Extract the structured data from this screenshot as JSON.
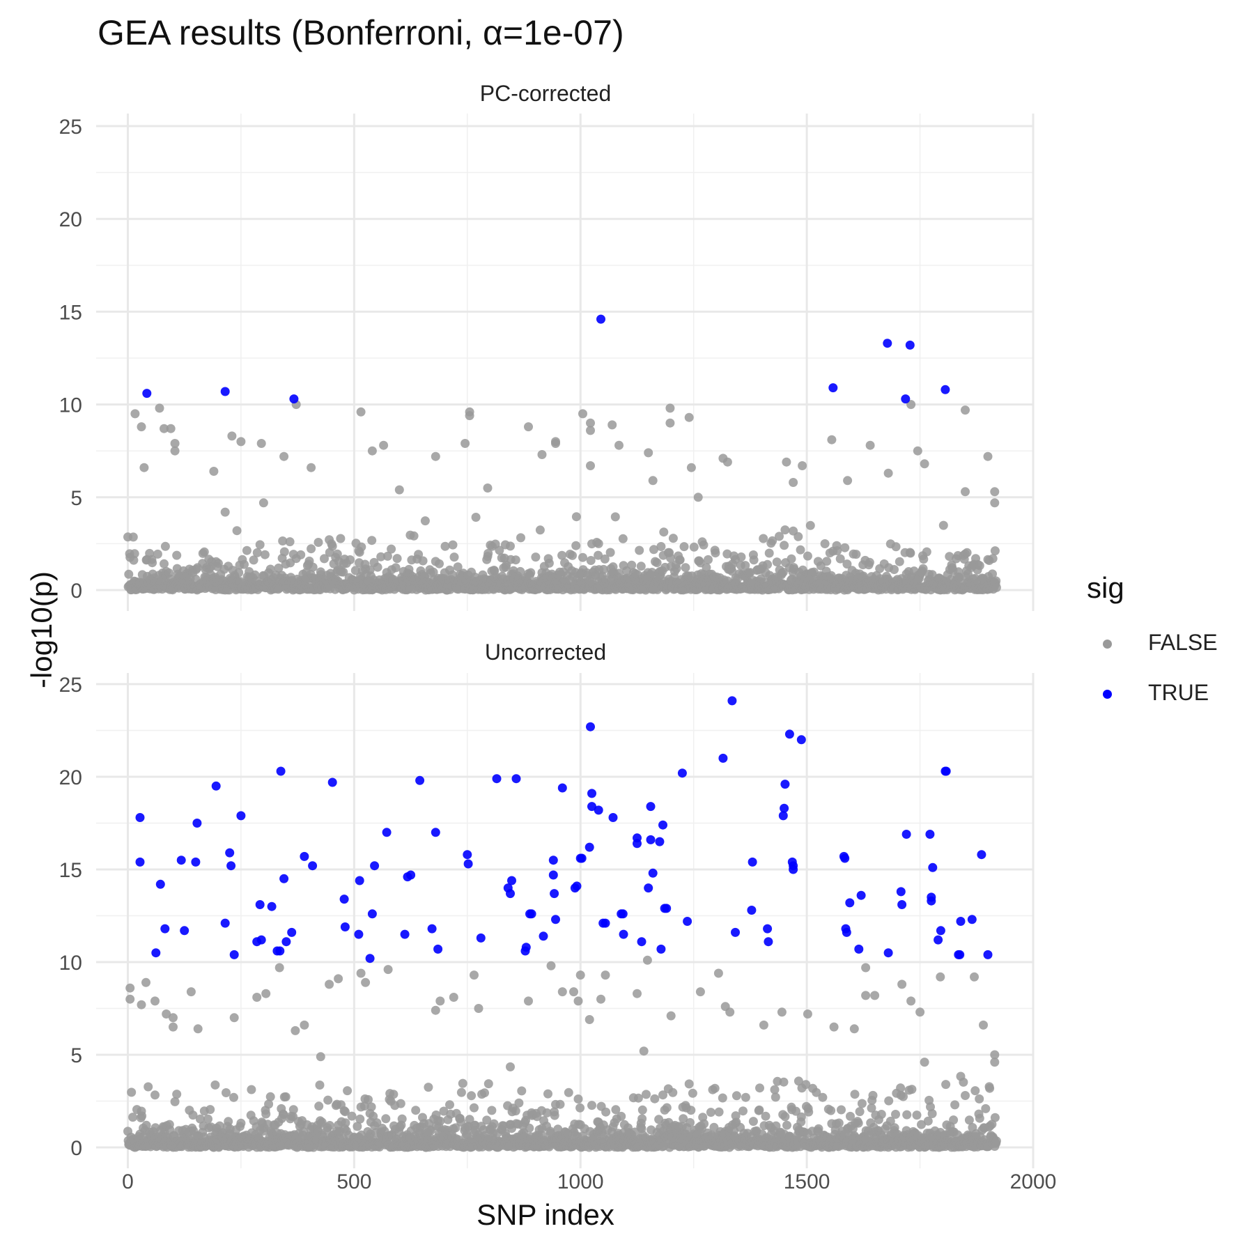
{
  "title": "GEA results (Bonferroni, α=1e-07)",
  "colors": {
    "false": "#999999",
    "true": "#0000ff"
  },
  "chart_data": {
    "type": "scatter",
    "title": "GEA results (Bonferroni, α=1e-07)",
    "xlabel": "SNP index",
    "ylabel": "-log10(p)",
    "xlim": [
      -70,
      2000
    ],
    "ylim": [
      -1.25,
      25.2
    ],
    "x_ticks": [
      0,
      500,
      1000,
      1500,
      2000
    ],
    "x_tick_labels": [
      "0",
      "500",
      "1000",
      "1500",
      "2000"
    ],
    "y_ticks": [
      0,
      5,
      10,
      15,
      20,
      25
    ],
    "y_tick_labels": [
      "0",
      "5",
      "10",
      "15",
      "20",
      "25"
    ],
    "n_snps": 1920,
    "grid": true,
    "legend": {
      "title": "sig",
      "placement": "right",
      "entries": [
        "FALSE",
        "TRUE"
      ]
    },
    "panels": [
      {
        "strip": "PC-corrected",
        "significant_points": [
          [
            42,
            10.6
          ],
          [
            215,
            10.7
          ],
          [
            367,
            10.3
          ],
          [
            1045,
            14.6
          ],
          [
            1558,
            10.9
          ],
          [
            1678,
            13.3
          ],
          [
            1718,
            10.3
          ],
          [
            1728,
            13.2
          ],
          [
            1806,
            10.8
          ]
        ],
        "nonsig_points": [
          [
            16,
            9.5
          ],
          [
            30,
            8.8
          ],
          [
            70,
            9.8
          ],
          [
            80,
            8.7
          ],
          [
            95,
            8.7
          ],
          [
            104,
            7.9
          ],
          [
            104,
            7.5
          ],
          [
            36,
            6.6
          ],
          [
            190,
            6.4
          ],
          [
            230,
            8.3
          ],
          [
            250,
            8.0
          ],
          [
            295,
            7.9
          ],
          [
            345,
            7.2
          ],
          [
            372,
            10.0
          ],
          [
            405,
            6.6
          ],
          [
            515,
            9.6
          ],
          [
            540,
            7.5
          ],
          [
            565,
            7.8
          ],
          [
            745,
            7.9
          ],
          [
            755,
            9.4
          ],
          [
            755,
            9.6
          ],
          [
            680,
            7.2
          ],
          [
            795,
            5.5
          ],
          [
            885,
            8.8
          ],
          [
            915,
            7.3
          ],
          [
            945,
            8.0
          ],
          [
            945,
            7.9
          ],
          [
            1005,
            9.5
          ],
          [
            1022,
            9.0
          ],
          [
            1022,
            8.6
          ],
          [
            1022,
            6.7
          ],
          [
            1070,
            8.9
          ],
          [
            1085,
            7.8
          ],
          [
            1150,
            7.4
          ],
          [
            1198,
            9.8
          ],
          [
            1198,
            9.0
          ],
          [
            1240,
            9.3
          ],
          [
            1245,
            6.6
          ],
          [
            1315,
            7.1
          ],
          [
            1325,
            6.9
          ],
          [
            1455,
            6.9
          ],
          [
            1490,
            6.7
          ],
          [
            1555,
            8.1
          ],
          [
            1640,
            7.8
          ],
          [
            1680,
            6.3
          ],
          [
            1730,
            10.0
          ],
          [
            1745,
            7.5
          ],
          [
            1760,
            6.8
          ],
          [
            1850,
            9.7
          ],
          [
            1900,
            7.2
          ],
          [
            1470,
            5.8
          ],
          [
            1590,
            5.9
          ],
          [
            1850,
            5.3
          ],
          [
            1915,
            5.3
          ],
          [
            1915,
            4.7
          ],
          [
            215,
            4.2
          ],
          [
            300,
            4.7
          ],
          [
            600,
            5.4
          ],
          [
            1160,
            5.9
          ],
          [
            1260,
            5.0
          ]
        ]
      },
      {
        "strip": "Uncorrected",
        "significant_points": [
          [
            27,
            17.8
          ],
          [
            27,
            15.4
          ],
          [
            62,
            10.5
          ],
          [
            72,
            14.2
          ],
          [
            82,
            11.8
          ],
          [
            118,
            15.5
          ],
          [
            125,
            11.7
          ],
          [
            150,
            15.4
          ],
          [
            153,
            17.5
          ],
          [
            195,
            19.5
          ],
          [
            215,
            12.1
          ],
          [
            225,
            15.9
          ],
          [
            228,
            15.2
          ],
          [
            235,
            10.4
          ],
          [
            250,
            17.9
          ],
          [
            285,
            11.1
          ],
          [
            292,
            13.1
          ],
          [
            295,
            11.2
          ],
          [
            318,
            13.0
          ],
          [
            330,
            10.6
          ],
          [
            336,
            10.6
          ],
          [
            338,
            20.3
          ],
          [
            345,
            14.5
          ],
          [
            350,
            11.1
          ],
          [
            362,
            11.6
          ],
          [
            390,
            15.7
          ],
          [
            408,
            15.2
          ],
          [
            452,
            19.7
          ],
          [
            478,
            13.4
          ],
          [
            480,
            11.9
          ],
          [
            510,
            11.5
          ],
          [
            512,
            14.4
          ],
          [
            535,
            10.2
          ],
          [
            540,
            12.6
          ],
          [
            545,
            15.2
          ],
          [
            572,
            17.0
          ],
          [
            612,
            11.5
          ],
          [
            618,
            14.6
          ],
          [
            625,
            14.7
          ],
          [
            645,
            19.8
          ],
          [
            672,
            11.8
          ],
          [
            680,
            17.0
          ],
          [
            685,
            10.7
          ],
          [
            750,
            15.8
          ],
          [
            752,
            15.3
          ],
          [
            780,
            11.3
          ],
          [
            815,
            19.9
          ],
          [
            840,
            14.0
          ],
          [
            845,
            13.7
          ],
          [
            848,
            14.4
          ],
          [
            858,
            19.9
          ],
          [
            878,
            10.6
          ],
          [
            880,
            10.8
          ],
          [
            888,
            12.6
          ],
          [
            892,
            12.6
          ],
          [
            918,
            11.4
          ],
          [
            940,
            14.7
          ],
          [
            940,
            15.5
          ],
          [
            942,
            13.7
          ],
          [
            945,
            12.3
          ],
          [
            960,
            19.4
          ],
          [
            988,
            14.0
          ],
          [
            992,
            14.1
          ],
          [
            1000,
            15.6
          ],
          [
            1003,
            15.6
          ],
          [
            1020,
            16.2
          ],
          [
            1022,
            22.7
          ],
          [
            1025,
            19.1
          ],
          [
            1025,
            18.4
          ],
          [
            1040,
            18.2
          ],
          [
            1050,
            12.1
          ],
          [
            1055,
            12.1
          ],
          [
            1072,
            17.8
          ],
          [
            1090,
            12.6
          ],
          [
            1094,
            12.6
          ],
          [
            1095,
            11.5
          ],
          [
            1125,
            16.7
          ],
          [
            1125,
            16.4
          ],
          [
            1135,
            11.1
          ],
          [
            1150,
            14.0
          ],
          [
            1155,
            16.6
          ],
          [
            1155,
            18.4
          ],
          [
            1160,
            14.8
          ],
          [
            1175,
            16.5
          ],
          [
            1178,
            10.7
          ],
          [
            1182,
            17.4
          ],
          [
            1186,
            12.9
          ],
          [
            1190,
            12.9
          ],
          [
            1225,
            20.2
          ],
          [
            1236,
            12.2
          ],
          [
            1315,
            21.0
          ],
          [
            1335,
            24.1
          ],
          [
            1342,
            11.6
          ],
          [
            1378,
            12.8
          ],
          [
            1380,
            15.4
          ],
          [
            1413,
            11.8
          ],
          [
            1415,
            11.1
          ],
          [
            1448,
            17.9
          ],
          [
            1450,
            18.3
          ],
          [
            1452,
            19.6
          ],
          [
            1462,
            22.3
          ],
          [
            1468,
            15.4
          ],
          [
            1470,
            15.2
          ],
          [
            1470,
            15.0
          ],
          [
            1488,
            22.0
          ],
          [
            1582,
            15.7
          ],
          [
            1584,
            15.6
          ],
          [
            1586,
            11.8
          ],
          [
            1588,
            11.6
          ],
          [
            1595,
            13.2
          ],
          [
            1615,
            10.7
          ],
          [
            1620,
            13.6
          ],
          [
            1680,
            10.5
          ],
          [
            1708,
            13.8
          ],
          [
            1710,
            13.1
          ],
          [
            1720,
            16.9
          ],
          [
            1772,
            16.9
          ],
          [
            1775,
            13.5
          ],
          [
            1775,
            13.3
          ],
          [
            1778,
            15.1
          ],
          [
            1790,
            11.2
          ],
          [
            1796,
            11.7
          ],
          [
            1806,
            20.3
          ],
          [
            1808,
            20.3
          ],
          [
            1835,
            10.4
          ],
          [
            1838,
            10.4
          ],
          [
            1840,
            12.2
          ],
          [
            1865,
            12.3
          ],
          [
            1886,
            15.8
          ],
          [
            1900,
            10.4
          ]
        ],
        "nonsig_points": [
          [
            5,
            8.6
          ],
          [
            5,
            8.0
          ],
          [
            30,
            7.7
          ],
          [
            40,
            8.9
          ],
          [
            60,
            7.9
          ],
          [
            85,
            7.2
          ],
          [
            100,
            7.0
          ],
          [
            100,
            6.5
          ],
          [
            140,
            8.4
          ],
          [
            155,
            6.4
          ],
          [
            235,
            7.0
          ],
          [
            285,
            8.1
          ],
          [
            305,
            8.3
          ],
          [
            335,
            9.7
          ],
          [
            370,
            6.3
          ],
          [
            390,
            6.6
          ],
          [
            445,
            8.8
          ],
          [
            465,
            9.1
          ],
          [
            515,
            9.4
          ],
          [
            525,
            8.9
          ],
          [
            575,
            9.6
          ],
          [
            680,
            7.4
          ],
          [
            690,
            7.9
          ],
          [
            720,
            8.1
          ],
          [
            765,
            9.3
          ],
          [
            775,
            7.5
          ],
          [
            885,
            7.9
          ],
          [
            935,
            9.8
          ],
          [
            960,
            8.4
          ],
          [
            985,
            8.4
          ],
          [
            995,
            7.9
          ],
          [
            1000,
            9.3
          ],
          [
            1020,
            6.9
          ],
          [
            1045,
            8.0
          ],
          [
            1055,
            9.3
          ],
          [
            1125,
            8.3
          ],
          [
            1148,
            10.1
          ],
          [
            1200,
            7.1
          ],
          [
            1265,
            8.4
          ],
          [
            1305,
            9.4
          ],
          [
            1320,
            7.6
          ],
          [
            1330,
            7.3
          ],
          [
            1405,
            6.6
          ],
          [
            1445,
            7.3
          ],
          [
            1502,
            7.2
          ],
          [
            1560,
            6.5
          ],
          [
            1605,
            6.4
          ],
          [
            1630,
            9.7
          ],
          [
            1630,
            8.2
          ],
          [
            1650,
            8.2
          ],
          [
            1710,
            8.8
          ],
          [
            1730,
            7.9
          ],
          [
            1750,
            7.3
          ],
          [
            1795,
            9.2
          ],
          [
            1870,
            9.2
          ],
          [
            1890,
            6.6
          ],
          [
            1915,
            5.0
          ],
          [
            1915,
            4.6
          ],
          [
            1140,
            5.2
          ],
          [
            1760,
            4.6
          ]
        ]
      }
    ]
  }
}
